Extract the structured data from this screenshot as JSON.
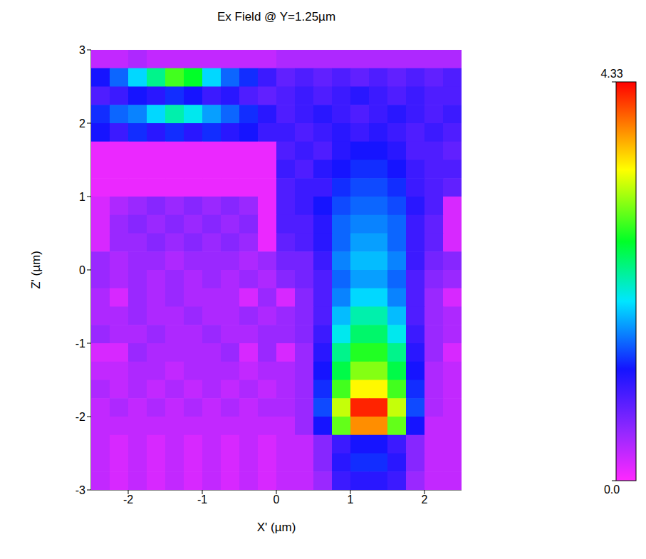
{
  "chart_data": {
    "type": "heatmap",
    "title": "Ex Field @ Y=1.25µm",
    "x_label": "X' (µm)",
    "y_label": "Z' (µm)",
    "xlim": [
      -2.5,
      2.5
    ],
    "xticks": [
      -2,
      -1,
      0,
      1,
      2
    ],
    "ylim": [
      -3,
      3
    ],
    "yticks": [
      -3,
      -2,
      -1,
      0,
      1,
      2,
      3
    ],
    "zlim": [
      0,
      4.33
    ],
    "zticks": [
      {
        "value": 0,
        "label": "0.0"
      },
      4.33
    ],
    "x": [
      -2.375,
      -2.125,
      -1.875,
      -1.625,
      -1.375,
      -1.125,
      -0.875,
      -0.625,
      -0.375,
      -0.125,
      0.125,
      0.375,
      0.625,
      0.875,
      1.125,
      1.375,
      1.625,
      1.875,
      2.125,
      2.375
    ],
    "y": [
      2.875,
      2.625,
      2.375,
      2.125,
      1.875,
      1.625,
      1.375,
      1.125,
      0.875,
      0.625,
      0.375,
      0.125,
      -0.125,
      -0.375,
      -0.625,
      -0.875,
      -1.125,
      -1.375,
      -1.625,
      -1.875,
      -2.125,
      -2.375,
      -2.625,
      -2.875
    ],
    "z": [
      [
        0.3,
        0.3,
        0.4,
        0.3,
        0.3,
        0.3,
        0.3,
        0.3,
        0.3,
        0.3,
        0.4,
        0.4,
        0.4,
        0.4,
        0.4,
        0.4,
        0.4,
        0.4,
        0.4,
        0.4
      ],
      [
        1.2,
        1.5,
        1.9,
        2.3,
        2.8,
        2.6,
        1.9,
        1.5,
        1.3,
        1.0,
        0.8,
        0.9,
        0.8,
        0.9,
        0.8,
        0.9,
        0.8,
        0.9,
        0.8,
        0.9
      ],
      [
        0.9,
        1.0,
        1.2,
        1.1,
        1.3,
        1.2,
        1.0,
        1.1,
        0.9,
        0.8,
        0.9,
        1.0,
        0.9,
        1.0,
        1.1,
        1.0,
        0.9,
        1.0,
        0.9,
        0.9
      ],
      [
        1.3,
        1.5,
        1.6,
        1.9,
        2.2,
        2.0,
        1.7,
        1.5,
        1.3,
        1.1,
        0.9,
        1.0,
        1.1,
        1.0,
        0.9,
        1.0,
        1.1,
        1.0,
        0.9,
        1.0
      ],
      [
        1.2,
        1.0,
        1.3,
        1.1,
        1.3,
        1.1,
        1.3,
        1.1,
        1.2,
        1.0,
        1.0,
        0.9,
        1.0,
        1.1,
        1.0,
        1.1,
        1.0,
        0.9,
        1.0,
        0.9
      ],
      [
        0.1,
        0.1,
        0.1,
        0.1,
        0.1,
        0.1,
        0.1,
        0.1,
        0.1,
        0.1,
        0.9,
        1.0,
        0.9,
        1.1,
        1.2,
        1.2,
        1.1,
        0.9,
        0.9,
        0.8
      ],
      [
        0.1,
        0.1,
        0.1,
        0.1,
        0.1,
        0.1,
        0.1,
        0.1,
        0.1,
        0.1,
        1.0,
        0.9,
        1.1,
        1.2,
        1.3,
        1.3,
        1.2,
        1.0,
        0.9,
        0.9
      ],
      [
        0.1,
        0.1,
        0.1,
        0.1,
        0.1,
        0.1,
        0.1,
        0.1,
        0.1,
        0.1,
        0.9,
        1.0,
        1.0,
        1.3,
        1.4,
        1.4,
        1.3,
        1.0,
        0.9,
        0.8
      ],
      [
        0.2,
        0.4,
        0.5,
        0.6,
        0.5,
        0.6,
        0.5,
        0.6,
        0.5,
        0.1,
        0.9,
        1.0,
        1.2,
        1.4,
        1.5,
        1.5,
        1.4,
        1.1,
        0.9,
        0.2
      ],
      [
        0.2,
        0.5,
        0.6,
        0.5,
        0.6,
        0.5,
        0.6,
        0.5,
        0.6,
        0.1,
        0.9,
        0.9,
        1.1,
        1.5,
        1.6,
        1.6,
        1.5,
        1.0,
        0.8,
        0.2
      ],
      [
        0.2,
        0.5,
        0.5,
        0.6,
        0.5,
        0.6,
        0.5,
        0.6,
        0.5,
        0.1,
        0.8,
        0.9,
        1.1,
        1.5,
        1.7,
        1.7,
        1.5,
        1.0,
        0.8,
        0.2
      ],
      [
        0.5,
        0.4,
        0.5,
        0.5,
        0.4,
        0.5,
        0.5,
        0.5,
        0.4,
        0.5,
        0.7,
        0.7,
        1.0,
        1.6,
        1.8,
        1.8,
        1.6,
        1.0,
        0.7,
        0.6
      ],
      [
        0.5,
        0.4,
        0.5,
        0.4,
        0.5,
        0.4,
        0.5,
        0.4,
        0.5,
        0.4,
        0.6,
        0.7,
        0.9,
        1.5,
        1.7,
        1.7,
        1.5,
        0.9,
        0.6,
        0.5
      ],
      [
        0.4,
        0.2,
        0.5,
        0.4,
        0.5,
        0.4,
        0.4,
        0.4,
        0.2,
        0.5,
        0.2,
        0.6,
        0.9,
        1.6,
        1.9,
        1.9,
        1.6,
        0.9,
        0.5,
        0.2
      ],
      [
        0.4,
        0.4,
        0.5,
        0.4,
        0.4,
        0.5,
        0.4,
        0.4,
        0.5,
        0.4,
        0.5,
        0.6,
        0.9,
        1.8,
        2.2,
        2.2,
        1.8,
        0.9,
        0.5,
        0.4
      ],
      [
        0.5,
        0.4,
        0.4,
        0.5,
        0.4,
        0.4,
        0.5,
        0.4,
        0.4,
        0.5,
        0.5,
        0.6,
        1.0,
        2.0,
        2.4,
        2.4,
        2.0,
        1.0,
        0.5,
        0.4
      ],
      [
        0.2,
        0.2,
        0.5,
        0.4,
        0.4,
        0.4,
        0.4,
        0.5,
        0.2,
        0.5,
        0.2,
        0.5,
        1.1,
        2.3,
        2.7,
        2.7,
        2.3,
        1.1,
        0.5,
        0.2
      ],
      [
        0.3,
        0.3,
        0.4,
        0.4,
        0.3,
        0.4,
        0.4,
        0.4,
        0.3,
        0.4,
        0.4,
        0.5,
        1.2,
        2.5,
        3.0,
        3.0,
        2.5,
        1.2,
        0.4,
        0.3
      ],
      [
        0.4,
        0.3,
        0.4,
        0.3,
        0.4,
        0.3,
        0.4,
        0.3,
        0.4,
        0.3,
        0.4,
        0.5,
        1.3,
        2.8,
        3.4,
        3.4,
        2.8,
        1.3,
        0.4,
        0.3
      ],
      [
        0.3,
        0.4,
        0.3,
        0.4,
        0.3,
        0.4,
        0.3,
        0.4,
        0.3,
        0.4,
        0.4,
        0.5,
        1.4,
        3.2,
        4.2,
        4.2,
        3.2,
        1.4,
        0.4,
        0.3
      ],
      [
        0.3,
        0.3,
        0.3,
        0.3,
        0.3,
        0.3,
        0.3,
        0.3,
        0.3,
        0.3,
        0.3,
        0.5,
        1.2,
        2.9,
        3.8,
        3.8,
        2.9,
        1.2,
        0.3,
        0.3
      ],
      [
        0.3,
        0.2,
        0.3,
        0.2,
        0.3,
        0.2,
        0.3,
        0.2,
        0.3,
        0.2,
        0.3,
        0.3,
        0.6,
        1.0,
        1.2,
        1.2,
        1.0,
        0.6,
        0.3,
        0.3
      ],
      [
        0.3,
        0.2,
        0.3,
        0.2,
        0.3,
        0.2,
        0.3,
        0.2,
        0.3,
        0.2,
        0.3,
        0.3,
        0.6,
        1.1,
        1.3,
        1.3,
        1.1,
        0.6,
        0.3,
        0.3
      ],
      [
        0.3,
        0.2,
        0.3,
        0.2,
        0.3,
        0.2,
        0.3,
        0.2,
        0.3,
        0.2,
        0.3,
        0.3,
        0.5,
        1.0,
        1.1,
        1.1,
        1.0,
        0.5,
        0.3,
        0.3
      ]
    ]
  }
}
